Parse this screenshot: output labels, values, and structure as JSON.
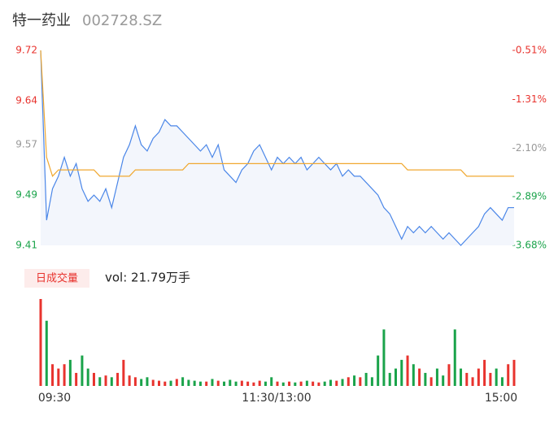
{
  "header": {
    "name": "特一药业",
    "code": "002728.SZ"
  },
  "chart_data": {
    "type": "line",
    "series": [
      {
        "name": "price",
        "color": "#4a86e8",
        "values": [
          9.72,
          9.45,
          9.5,
          9.52,
          9.55,
          9.52,
          9.54,
          9.5,
          9.48,
          9.49,
          9.48,
          9.5,
          9.47,
          9.51,
          9.55,
          9.57,
          9.6,
          9.57,
          9.56,
          9.58,
          9.59,
          9.61,
          9.6,
          9.6,
          9.59,
          9.58,
          9.57,
          9.56,
          9.57,
          9.55,
          9.57,
          9.53,
          9.52,
          9.51,
          9.53,
          9.54,
          9.56,
          9.57,
          9.55,
          9.53,
          9.55,
          9.54,
          9.55,
          9.54,
          9.55,
          9.53,
          9.54,
          9.55,
          9.54,
          9.53,
          9.54,
          9.52,
          9.53,
          9.52,
          9.52,
          9.51,
          9.5,
          9.49,
          9.47,
          9.46,
          9.44,
          9.42,
          9.44,
          9.43,
          9.44,
          9.43,
          9.44,
          9.43,
          9.42,
          9.43,
          9.42,
          9.41,
          9.42,
          9.43,
          9.44,
          9.46,
          9.47,
          9.46,
          9.45,
          9.47,
          9.47
        ]
      },
      {
        "name": "average",
        "color": "#f0a830",
        "values": [
          9.72,
          9.55,
          9.52,
          9.53,
          9.53,
          9.53,
          9.53,
          9.53,
          9.53,
          9.53,
          9.52,
          9.52,
          9.52,
          9.52,
          9.52,
          9.52,
          9.53,
          9.53,
          9.53,
          9.53,
          9.53,
          9.53,
          9.53,
          9.53,
          9.53,
          9.54,
          9.54,
          9.54,
          9.54,
          9.54,
          9.54,
          9.54,
          9.54,
          9.54,
          9.54,
          9.54,
          9.54,
          9.54,
          9.54,
          9.54,
          9.54,
          9.54,
          9.54,
          9.54,
          9.54,
          9.54,
          9.54,
          9.54,
          9.54,
          9.54,
          9.54,
          9.54,
          9.54,
          9.54,
          9.54,
          9.54,
          9.54,
          9.54,
          9.54,
          9.54,
          9.54,
          9.54,
          9.53,
          9.53,
          9.53,
          9.53,
          9.53,
          9.53,
          9.53,
          9.53,
          9.53,
          9.53,
          9.52,
          9.52,
          9.52,
          9.52,
          9.52,
          9.52,
          9.52,
          9.52,
          9.52
        ]
      }
    ],
    "ylim": [
      9.41,
      9.72
    ],
    "yticks": [
      9.72,
      9.64,
      9.57,
      9.49,
      9.41
    ],
    "ytick_colors": [
      "#e8332e",
      "#e8332e",
      "#999999",
      "#1aa34a",
      "#1aa34a"
    ],
    "y2lim": [
      -3.68,
      -0.51
    ],
    "y2ticks": [
      {
        "value": -0.51,
        "label": "-0.51%"
      },
      {
        "value": -1.31,
        "label": "-1.31%"
      },
      {
        "value": -2.1,
        "label": "-2.10%"
      },
      {
        "value": -2.89,
        "label": "-2.89%"
      },
      {
        "value": -3.68,
        "label": "-3.68%"
      }
    ],
    "y2tick_colors": [
      "#e8332e",
      "#e8332e",
      "#999999",
      "#1aa34a",
      "#1aa34a"
    ],
    "up_color": "#e8332e",
    "down_color": "#1aa34a",
    "volume_badge": "日成交量",
    "volume_text": "vol: 21.79万手",
    "volume": [
      1.0,
      0.75,
      0.25,
      0.2,
      0.25,
      0.3,
      0.15,
      0.35,
      0.2,
      0.15,
      0.1,
      0.12,
      0.1,
      0.15,
      0.3,
      0.12,
      0.1,
      0.08,
      0.1,
      0.07,
      0.06,
      0.05,
      0.06,
      0.08,
      0.1,
      0.07,
      0.06,
      0.05,
      0.05,
      0.08,
      0.06,
      0.05,
      0.07,
      0.05,
      0.06,
      0.05,
      0.04,
      0.06,
      0.05,
      0.1,
      0.05,
      0.04,
      0.05,
      0.04,
      0.05,
      0.06,
      0.05,
      0.04,
      0.05,
      0.07,
      0.06,
      0.08,
      0.1,
      0.12,
      0.1,
      0.15,
      0.1,
      0.35,
      0.65,
      0.15,
      0.2,
      0.3,
      0.35,
      0.25,
      0.2,
      0.15,
      0.1,
      0.2,
      0.12,
      0.25,
      0.65,
      0.2,
      0.15,
      0.1,
      0.2,
      0.3,
      0.15,
      0.2,
      0.1,
      0.25,
      0.3
    ],
    "vlim": [
      0,
      1.0
    ],
    "time_labels": [
      "09:30",
      "11:30/13:00",
      "15:00"
    ]
  }
}
